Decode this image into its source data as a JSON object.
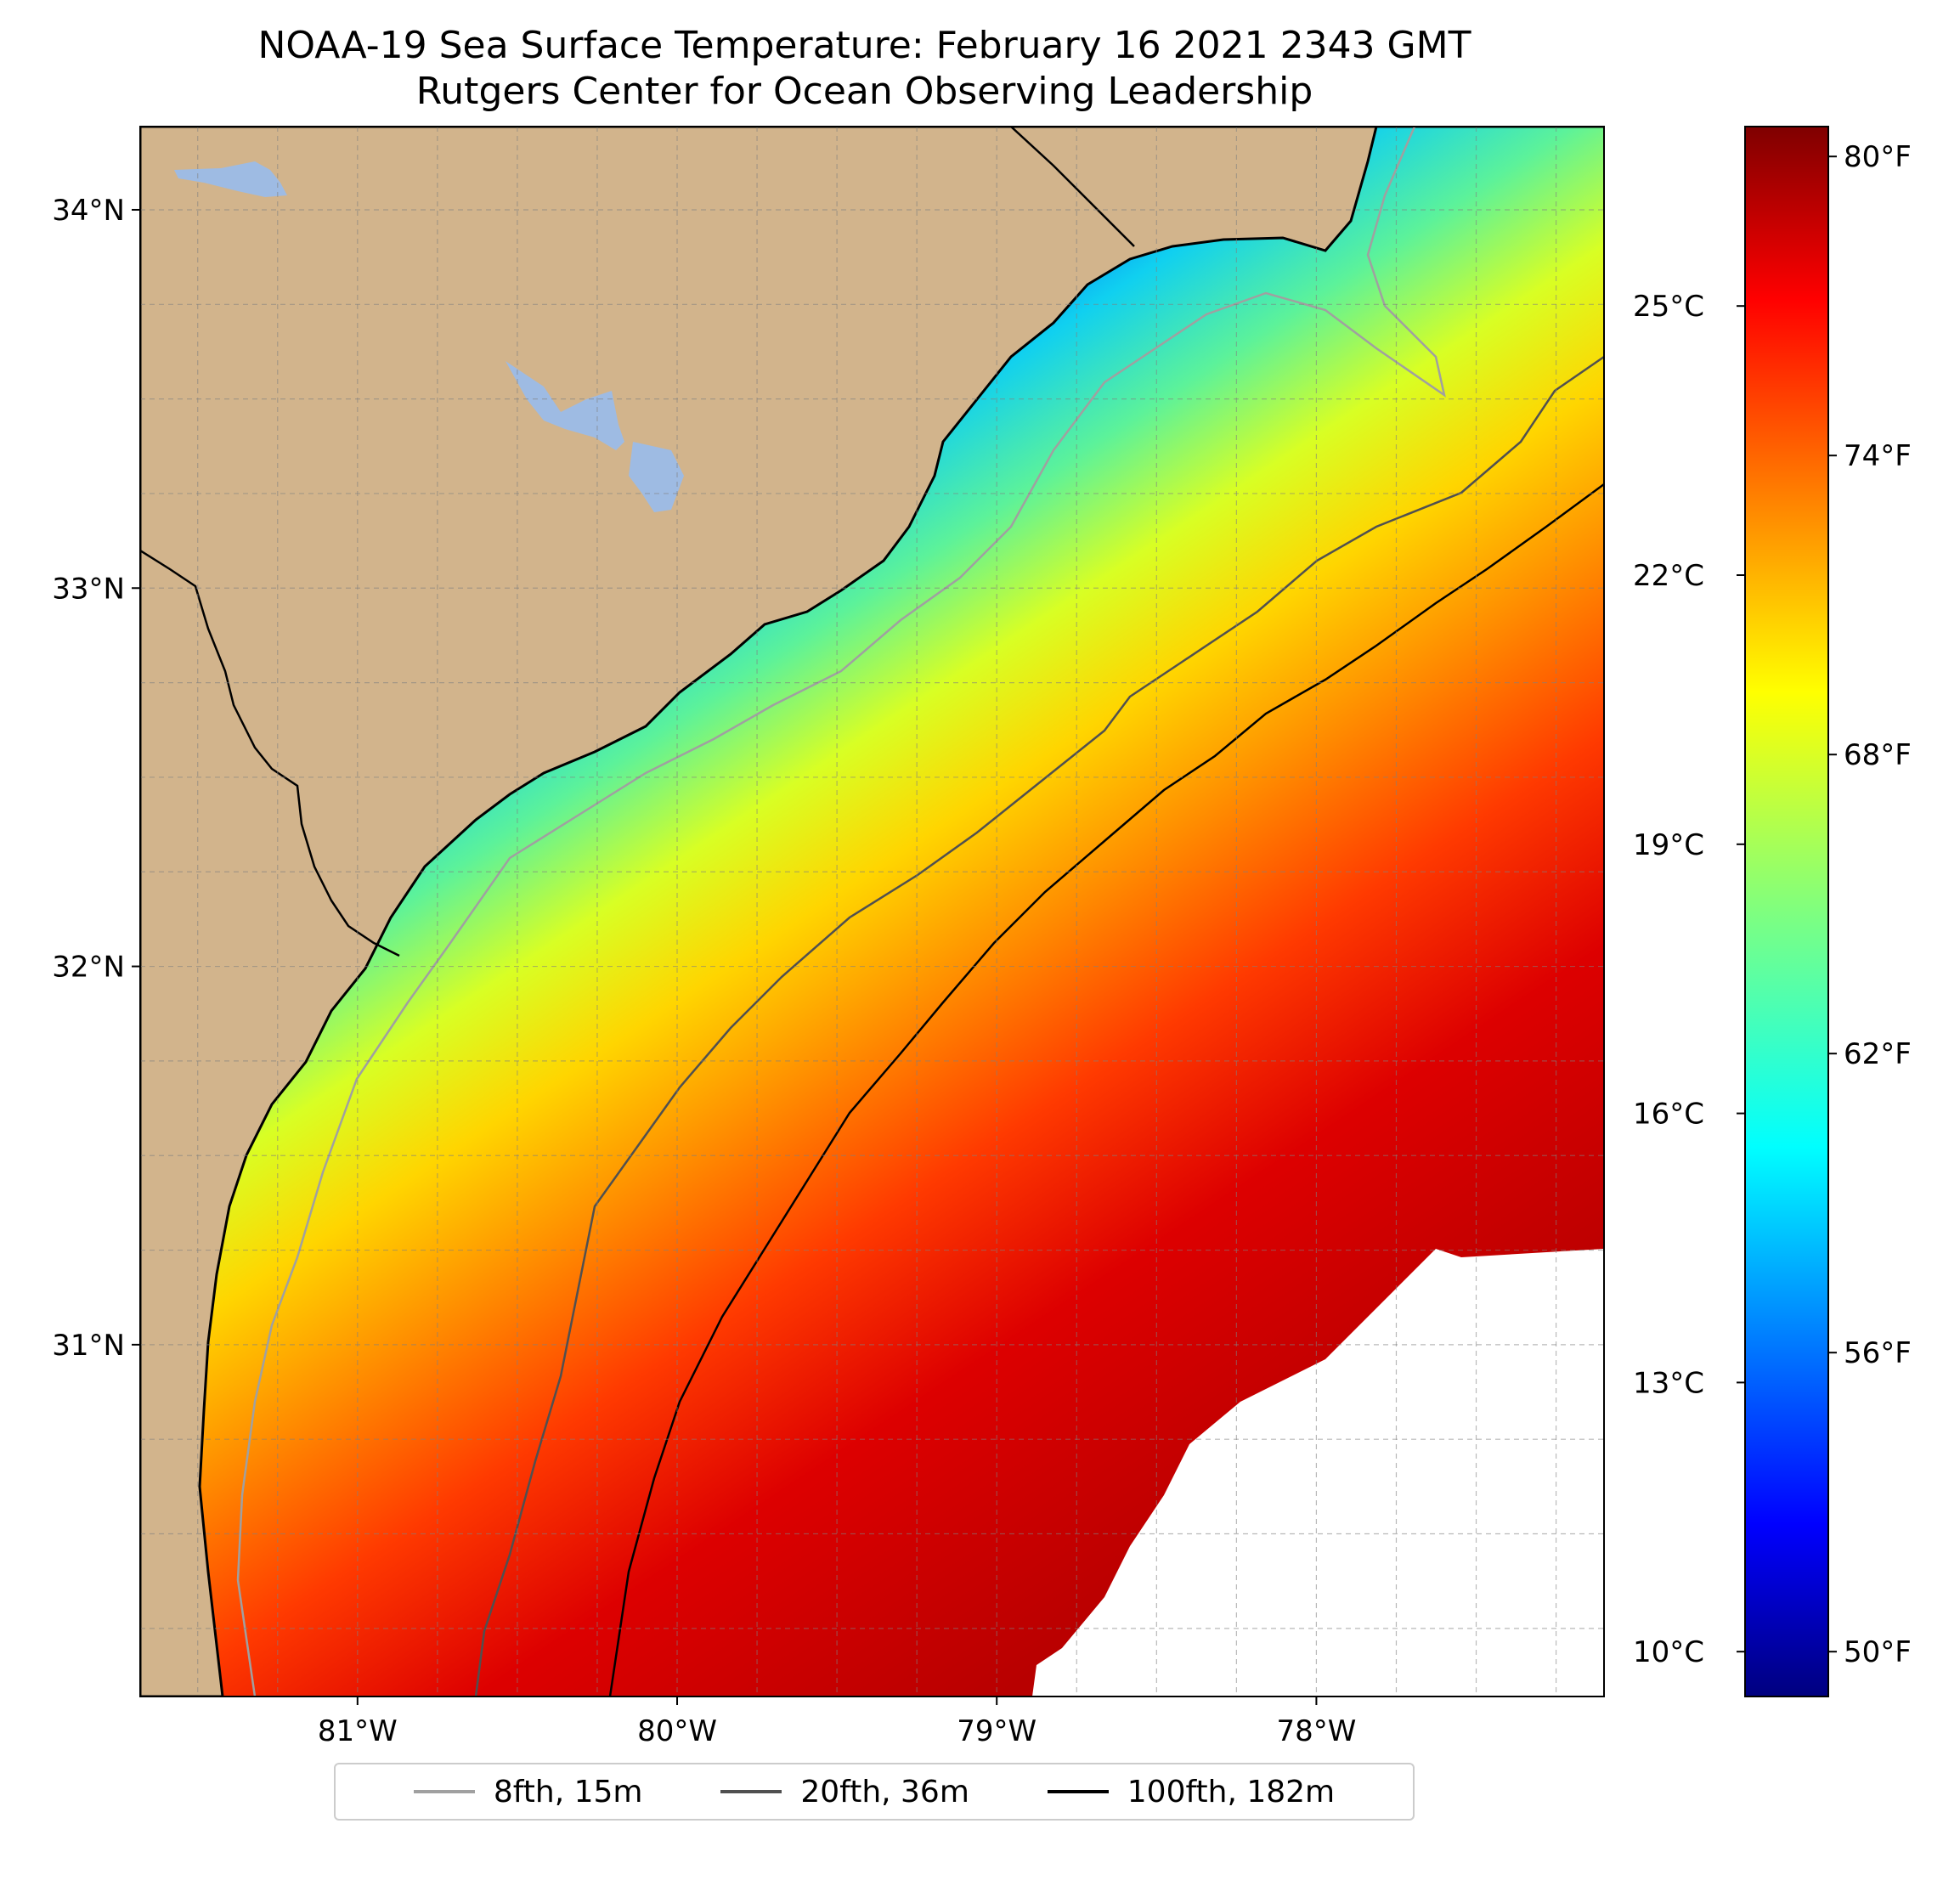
{
  "header": {
    "title": "NOAA-19 Sea Surface Temperature: February 16 2021 2343 GMT",
    "subtitle": "Rutgers Center for Ocean Observing Leadership"
  },
  "map": {
    "extent": {
      "lon_min": -81.68,
      "lon_max": -77.1,
      "lat_min": 30.07,
      "lat_max": 34.22
    },
    "lat_ticks": [
      {
        "value": 34,
        "label": "34°N"
      },
      {
        "value": 33,
        "label": "33°N"
      },
      {
        "value": 32,
        "label": "32°N"
      },
      {
        "value": 31,
        "label": "31°N"
      }
    ],
    "lon_ticks": [
      {
        "value": -81,
        "label": "81°W"
      },
      {
        "value": -80,
        "label": "80°W"
      },
      {
        "value": -79,
        "label": "79°W"
      },
      {
        "value": -78,
        "label": "78°W"
      }
    ],
    "minor_grid_step_deg": 0.25,
    "grid": true,
    "colors": {
      "land": "#d2b48c",
      "lakes": "#9ebbe3",
      "no_data": "#ffffff",
      "coastline": "#000000",
      "border": "#000000"
    }
  },
  "colorbar": {
    "colormap": "jet",
    "celsius_range": [
      9.5,
      27.0
    ],
    "celsius_ticks": [
      {
        "value": 10,
        "label": "10°C"
      },
      {
        "value": 13,
        "label": "13°C"
      },
      {
        "value": 16,
        "label": "16°C"
      },
      {
        "value": 19,
        "label": "19°C"
      },
      {
        "value": 22,
        "label": "22°C"
      },
      {
        "value": 25,
        "label": "25°C"
      }
    ],
    "fahrenheit_ticks": [
      {
        "value": 50,
        "label": "50°F"
      },
      {
        "value": 56,
        "label": "56°F"
      },
      {
        "value": 62,
        "label": "62°F"
      },
      {
        "value": 68,
        "label": "68°F"
      },
      {
        "value": 74,
        "label": "74°F"
      },
      {
        "value": 80,
        "label": "80°F"
      }
    ]
  },
  "legend": {
    "items": [
      {
        "label": "8fth, 15m",
        "color": "#a0a0a0"
      },
      {
        "label": "20fth, 36m",
        "color": "#505050"
      },
      {
        "label": "100fth, 182m",
        "color": "#000000"
      }
    ]
  }
}
